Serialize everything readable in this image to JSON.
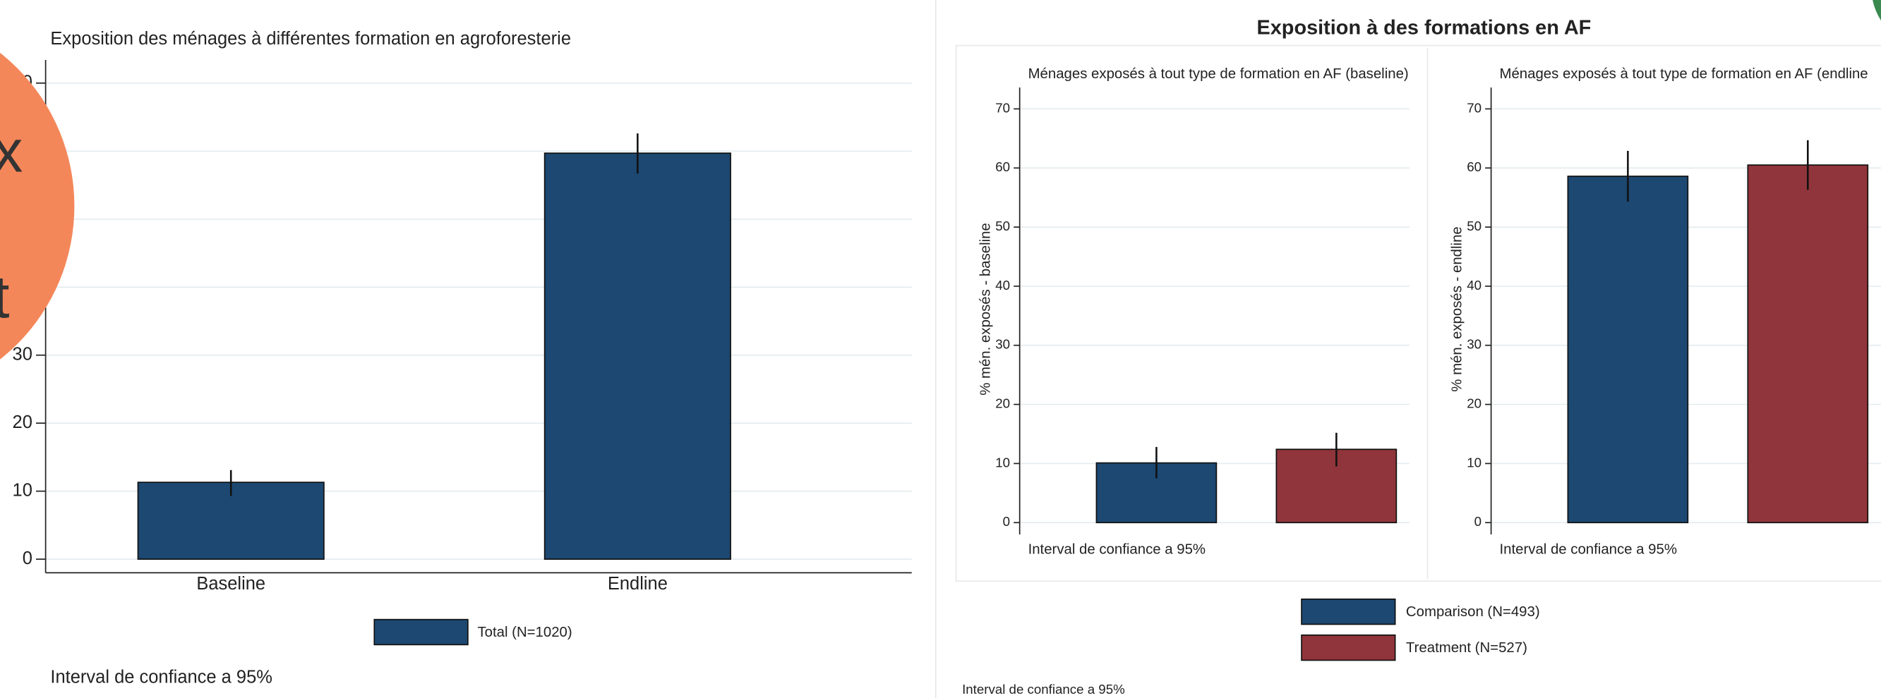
{
  "chart_data": [
    {
      "type": "bar",
      "title": "Exposition des ménages à différentes formation en agroforesterie",
      "categories": [
        "Baseline",
        "Endline"
      ],
      "series": [
        {
          "name": "Total (N=1020)",
          "color": "#1c4871",
          "values": [
            11.3,
            59.7
          ],
          "ci_low": [
            9.3,
            56.7
          ],
          "ci_high": [
            13.1,
            62.6
          ]
        }
      ],
      "ylim": [
        -2,
        72
      ],
      "yticks": [
        0,
        10,
        20,
        30,
        40,
        50,
        60,
        70
      ],
      "grid": true,
      "note": "Interval de confiance a 95%"
    },
    {
      "type": "bar",
      "title": "Exposition à des formations en AF",
      "series": [
        {
          "name": "Comparison (N=493)",
          "color": "#1c4871"
        },
        {
          "name": "Treatment (N=527)",
          "color": "#90353b"
        }
      ],
      "panels": [
        {
          "subtitle": "Ménages exposés à tout type de formation en AF (baseline)",
          "ylabel": "% mén. exposés - baseline",
          "values": [
            10.1,
            12.4
          ],
          "ci_low": [
            7.5,
            9.5
          ],
          "ci_high": [
            12.8,
            15.2
          ],
          "ylim": [
            -2,
            72
          ],
          "yticks": [
            0,
            10,
            20,
            30,
            40,
            50,
            60,
            70
          ],
          "grid": true,
          "note": "Interval de confiance a 95%"
        },
        {
          "subtitle": "Ménages exposés à tout type de formation en AF (endline",
          "ylabel": "% mén. exposés - endline",
          "values": [
            58.6,
            60.5
          ],
          "ci_low": [
            54.3,
            56.3
          ],
          "ci_high": [
            62.9,
            64.7
          ],
          "ylim": [
            -2,
            72
          ],
          "yticks": [
            0,
            10,
            20,
            30,
            40,
            50,
            60,
            70
          ],
          "grid": true,
          "note": "Interval de confiance a 95%"
        }
      ],
      "note": "Interval de confiance a 95%"
    }
  ],
  "overlay": {
    "lines": [
      "x",
      "t"
    ]
  }
}
